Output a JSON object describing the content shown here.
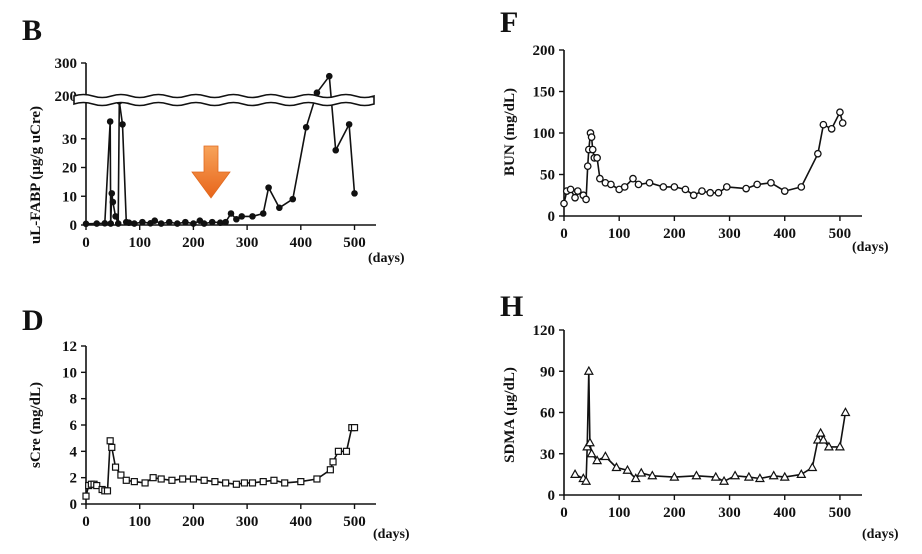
{
  "chart_data": [
    {
      "id": "B",
      "type": "line",
      "panel_label": "B",
      "ylabel": "uL-FABP (µg/g uCre)",
      "xunit": "(days)",
      "marker": "filled-circle",
      "xlim": [
        0,
        540
      ],
      "xticks": [
        "0",
        "100",
        "200",
        "300",
        "400",
        "500"
      ],
      "axis_break": true,
      "break_ticks": [
        "200",
        "300"
      ],
      "ylim_lower": [
        0,
        40
      ],
      "yticks_lower": [
        "0",
        "10",
        "20",
        "30"
      ],
      "ylim_upper": [
        200,
        300
      ],
      "annotation": "orange-down-arrow at ~250 days",
      "series": [
        {
          "name": "uL-FABP",
          "points": [
            [
              0,
              0.4
            ],
            [
              20,
              0.5
            ],
            [
              35,
              0.6
            ],
            [
              45,
              36
            ],
            [
              46,
              0.5
            ],
            [
              48,
              11
            ],
            [
              50,
              8
            ],
            [
              55,
              3
            ],
            [
              60,
              0.5
            ],
            [
              62,
              140
            ],
            [
              68,
              35
            ],
            [
              75,
              1
            ],
            [
              80,
              0.8
            ],
            [
              90,
              0.5
            ],
            [
              105,
              1
            ],
            [
              120,
              0.6
            ],
            [
              128,
              1.5
            ],
            [
              140,
              0.5
            ],
            [
              155,
              1
            ],
            [
              170,
              0.5
            ],
            [
              185,
              1
            ],
            [
              200,
              0.5
            ],
            [
              212,
              1.5
            ],
            [
              220,
              0.5
            ],
            [
              235,
              1
            ],
            [
              250,
              0.8
            ],
            [
              260,
              1
            ],
            [
              270,
              4
            ],
            [
              280,
              2
            ],
            [
              290,
              3
            ],
            [
              310,
              3
            ],
            [
              330,
              4
            ],
            [
              340,
              13
            ],
            [
              360,
              6
            ],
            [
              385,
              9
            ],
            [
              410,
              34
            ],
            [
              430,
              210
            ],
            [
              453,
              260
            ],
            [
              465,
              26
            ],
            [
              490,
              35
            ],
            [
              500,
              11
            ]
          ]
        }
      ]
    },
    {
      "id": "F",
      "type": "line",
      "panel_label": "F",
      "ylabel": "BUN (mg/dL)",
      "xunit": "(days)",
      "marker": "open-circle",
      "xlim": [
        0,
        540
      ],
      "ylim": [
        0,
        200
      ],
      "xticks": [
        "0",
        "100",
        "200",
        "300",
        "400",
        "500"
      ],
      "yticks": [
        "0",
        "50",
        "100",
        "150",
        "200"
      ],
      "series": [
        {
          "name": "BUN",
          "points": [
            [
              0,
              15
            ],
            [
              5,
              30
            ],
            [
              12,
              32
            ],
            [
              20,
              22
            ],
            [
              25,
              30
            ],
            [
              35,
              25
            ],
            [
              40,
              20
            ],
            [
              43,
              60
            ],
            [
              45,
              80
            ],
            [
              48,
              100
            ],
            [
              50,
              95
            ],
            [
              52,
              80
            ],
            [
              55,
              70
            ],
            [
              60,
              70
            ],
            [
              65,
              45
            ],
            [
              75,
              40
            ],
            [
              85,
              38
            ],
            [
              100,
              32
            ],
            [
              110,
              35
            ],
            [
              125,
              45
            ],
            [
              135,
              38
            ],
            [
              155,
              40
            ],
            [
              180,
              35
            ],
            [
              200,
              35
            ],
            [
              220,
              32
            ],
            [
              235,
              25
            ],
            [
              250,
              30
            ],
            [
              265,
              28
            ],
            [
              280,
              28
            ],
            [
              295,
              35
            ],
            [
              330,
              33
            ],
            [
              350,
              38
            ],
            [
              375,
              40
            ],
            [
              400,
              30
            ],
            [
              430,
              35
            ],
            [
              460,
              75
            ],
            [
              470,
              110
            ],
            [
              485,
              105
            ],
            [
              500,
              125
            ],
            [
              505,
              112
            ]
          ]
        }
      ]
    },
    {
      "id": "D",
      "type": "line",
      "panel_label": "D",
      "ylabel": "sCre (mg/dL)",
      "xunit": "(days)",
      "marker": "open-square",
      "xlim": [
        0,
        540
      ],
      "ylim": [
        0,
        12
      ],
      "xticks": [
        "0",
        "100",
        "200",
        "300",
        "400",
        "500"
      ],
      "yticks": [
        "0",
        "2",
        "4",
        "6",
        "8",
        "10",
        "12"
      ],
      "series": [
        {
          "name": "sCre",
          "points": [
            [
              0,
              0.6
            ],
            [
              5,
              1.4
            ],
            [
              10,
              1.5
            ],
            [
              15,
              1.5
            ],
            [
              20,
              1.4
            ],
            [
              30,
              1.1
            ],
            [
              35,
              1.0
            ],
            [
              40,
              1.0
            ],
            [
              45,
              4.8
            ],
            [
              48,
              4.3
            ],
            [
              55,
              2.8
            ],
            [
              65,
              2.2
            ],
            [
              75,
              1.8
            ],
            [
              90,
              1.7
            ],
            [
              110,
              1.6
            ],
            [
              125,
              2.0
            ],
            [
              140,
              1.9
            ],
            [
              160,
              1.8
            ],
            [
              180,
              1.9
            ],
            [
              200,
              1.9
            ],
            [
              220,
              1.8
            ],
            [
              240,
              1.7
            ],
            [
              260,
              1.6
            ],
            [
              280,
              1.5
            ],
            [
              295,
              1.6
            ],
            [
              310,
              1.6
            ],
            [
              330,
              1.7
            ],
            [
              350,
              1.8
            ],
            [
              370,
              1.6
            ],
            [
              400,
              1.7
            ],
            [
              430,
              1.9
            ],
            [
              455,
              2.6
            ],
            [
              460,
              3.2
            ],
            [
              470,
              4.0
            ],
            [
              485,
              4.0
            ],
            [
              495,
              5.8
            ],
            [
              500,
              5.8
            ]
          ]
        }
      ]
    },
    {
      "id": "H",
      "type": "line",
      "panel_label": "H",
      "ylabel": "SDMA (µg/dL)",
      "xunit": "(days)",
      "marker": "open-triangle",
      "xlim": [
        0,
        540
      ],
      "ylim": [
        0,
        120
      ],
      "xticks": [
        "0",
        "100",
        "200",
        "300",
        "400",
        "500"
      ],
      "yticks": [
        "0",
        "30",
        "60",
        "90",
        "120"
      ],
      "series": [
        {
          "name": "SDMA",
          "points": [
            [
              20,
              15
            ],
            [
              35,
              12
            ],
            [
              40,
              10
            ],
            [
              42,
              35
            ],
            [
              45,
              90
            ],
            [
              47,
              38
            ],
            [
              50,
              30
            ],
            [
              60,
              25
            ],
            [
              75,
              28
            ],
            [
              95,
              20
            ],
            [
              115,
              18
            ],
            [
              130,
              12
            ],
            [
              140,
              16
            ],
            [
              160,
              14
            ],
            [
              200,
              13
            ],
            [
              240,
              14
            ],
            [
              275,
              13
            ],
            [
              290,
              10
            ],
            [
              310,
              14
            ],
            [
              335,
              13
            ],
            [
              355,
              12
            ],
            [
              380,
              14
            ],
            [
              400,
              13
            ],
            [
              430,
              15
            ],
            [
              450,
              20
            ],
            [
              460,
              40
            ],
            [
              465,
              45
            ],
            [
              470,
              40
            ],
            [
              480,
              35
            ],
            [
              500,
              35
            ],
            [
              510,
              60
            ]
          ]
        }
      ]
    }
  ]
}
